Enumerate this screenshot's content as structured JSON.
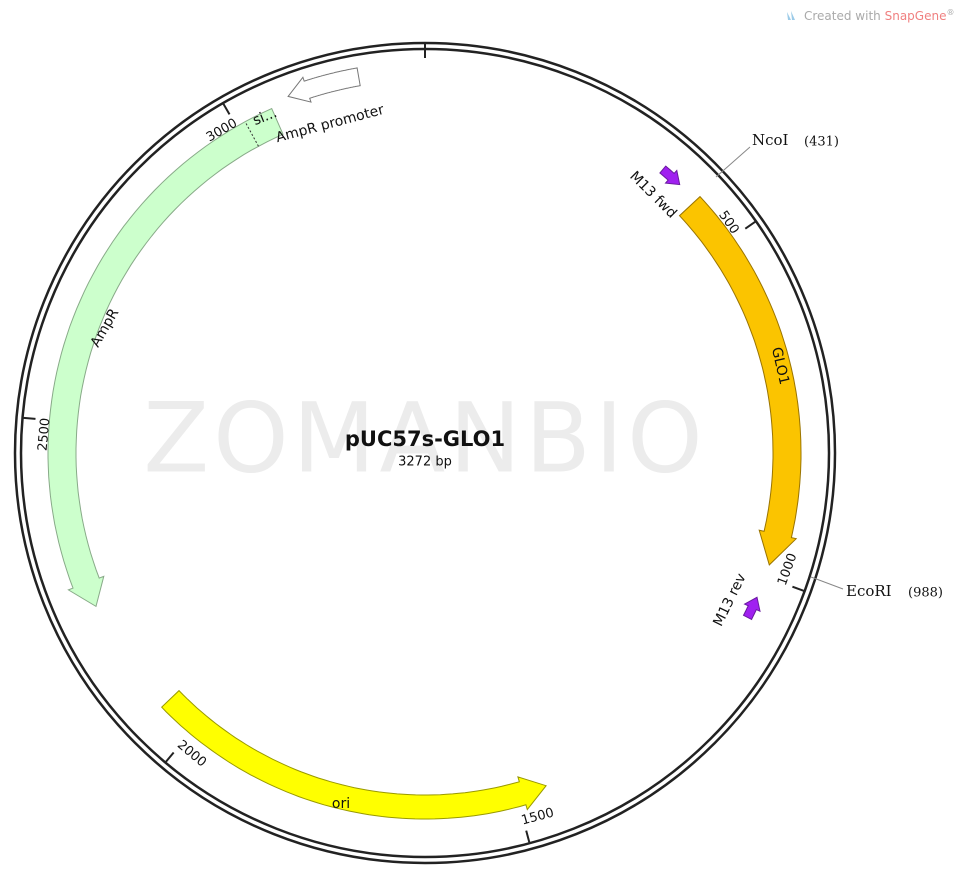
{
  "branding": {
    "prefix": "Created with",
    "name": "SnapGene",
    "mark": "®"
  },
  "watermark": "ZOMANBIO",
  "plasmid": {
    "name": "pUC57s-GLO1",
    "length": "3272 bp"
  },
  "ticks": [
    "500",
    "1000",
    "1500",
    "2000",
    "2500",
    "3000"
  ],
  "sites": [
    {
      "name": "NcoI",
      "position": "(431)"
    },
    {
      "name": "EcoRI",
      "position": "(988)"
    }
  ],
  "features": [
    "M13 fwd",
    "GLO1",
    "M13 rev",
    "ori",
    "AmpR",
    "si...",
    "AmpR promoter"
  ]
}
